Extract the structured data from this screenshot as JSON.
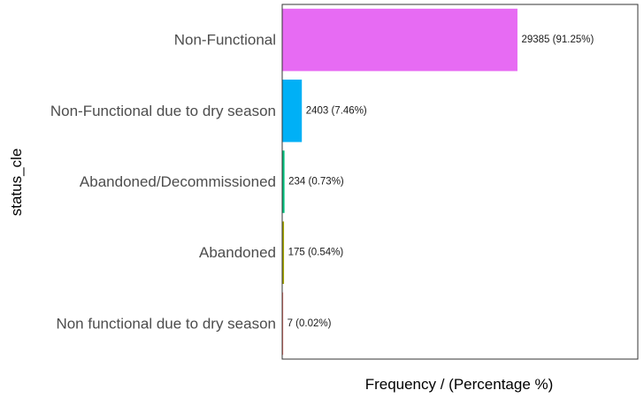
{
  "chart_data": {
    "type": "bar",
    "orientation": "horizontal",
    "categories": [
      "Non-Functional",
      "Non-Functional due to dry season",
      "Abandoned/Decommissioned",
      "Abandoned",
      "Non functional due to dry season"
    ],
    "values": [
      29385,
      2403,
      234,
      175,
      7
    ],
    "percentages": [
      91.25,
      7.46,
      0.73,
      0.54,
      0.02
    ],
    "data_labels": [
      "29385 (91.25%)",
      "2403 (7.46%)",
      "234 (0.73%)",
      "175 (0.54%)",
      "7 (0.02%)"
    ],
    "bar_colors": [
      "#E76BF3",
      "#00B0F6",
      "#00BF7D",
      "#A3A500",
      "#F8766D"
    ],
    "xlabel": "Frequency / (Percentage %)",
    "ylabel": "status_cle",
    "xlim": [
      0,
      44500
    ],
    "x_tick_labels_shown": false,
    "grid": false,
    "legend": "none",
    "panel_border": true
  }
}
